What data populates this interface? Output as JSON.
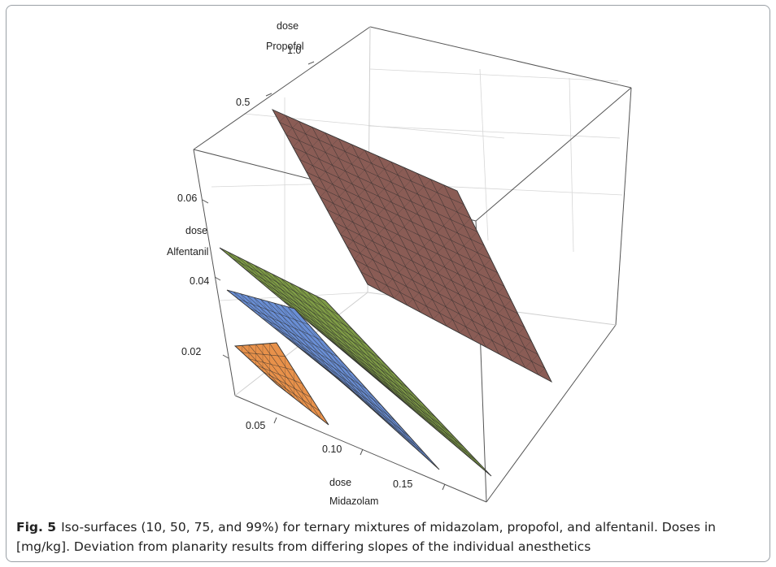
{
  "chart_data": {
    "type": "surface3d",
    "axes": {
      "x": {
        "label_line1": "dose",
        "label_line2": "Midazolam",
        "ticks": [
          "0.05",
          "0.10",
          "0.15"
        ]
      },
      "y": {
        "label_line1": "dose",
        "label_line2": "Propofol",
        "ticks": [
          "0.5",
          "1.0"
        ]
      },
      "z": {
        "label_line1": "dose",
        "label_line2": "Alfentanil",
        "ticks": [
          "0.02",
          "0.04",
          "0.06"
        ]
      }
    },
    "series": [
      {
        "level": "10%",
        "color": "#e8914a"
      },
      {
        "level": "50%",
        "color": "#6a8fd6"
      },
      {
        "level": "75%",
        "color": "#7f9c46"
      },
      {
        "level": "99%",
        "color": "#8a5c55"
      }
    ],
    "grid": true
  },
  "caption": {
    "figure_label": "Fig. 5",
    "text": "Iso-surfaces (10, 50, 75, and 99%) for ternary mixtures of midazolam, propofol, and alfentanil. Doses in [mg/kg]. Deviation from planarity results from differing slopes of the individual anesthetics"
  }
}
